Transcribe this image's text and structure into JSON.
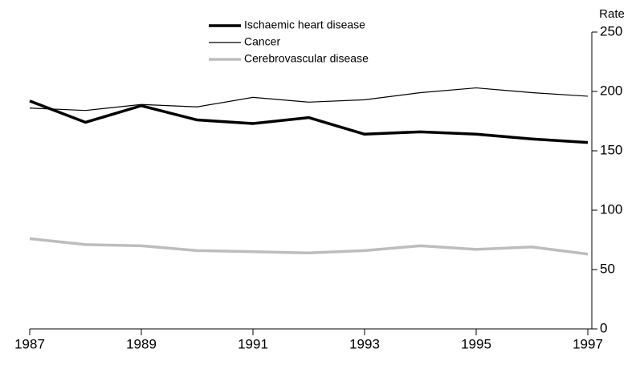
{
  "chart_data": {
    "type": "line",
    "y_label": "Rate",
    "x": [
      1987,
      1988,
      1989,
      1990,
      1991,
      1992,
      1993,
      1994,
      1995,
      1996,
      1997
    ],
    "series": [
      {
        "name": "Ischaemic heart disease",
        "color": "#000000",
        "values": [
          192,
          174,
          188,
          176,
          173,
          178,
          164,
          166,
          164,
          160,
          157
        ]
      },
      {
        "name": "Cancer",
        "color": "#000000",
        "values": [
          186,
          184,
          189,
          187,
          195,
          191,
          193,
          199,
          203,
          199,
          196
        ]
      },
      {
        "name": "Cerebrovascular disease",
        "color": "#bdbdbd",
        "values": [
          76,
          71,
          70,
          66,
          65,
          64,
          66,
          70,
          67,
          69,
          63
        ]
      }
    ],
    "xlim": [
      1987,
      1997
    ],
    "xticks": [
      1987,
      1989,
      1991,
      1993,
      1995,
      1997
    ],
    "ylim": [
      0,
      250
    ],
    "yticks": [
      0,
      50,
      100,
      150,
      200,
      250
    ],
    "legend": "top"
  }
}
